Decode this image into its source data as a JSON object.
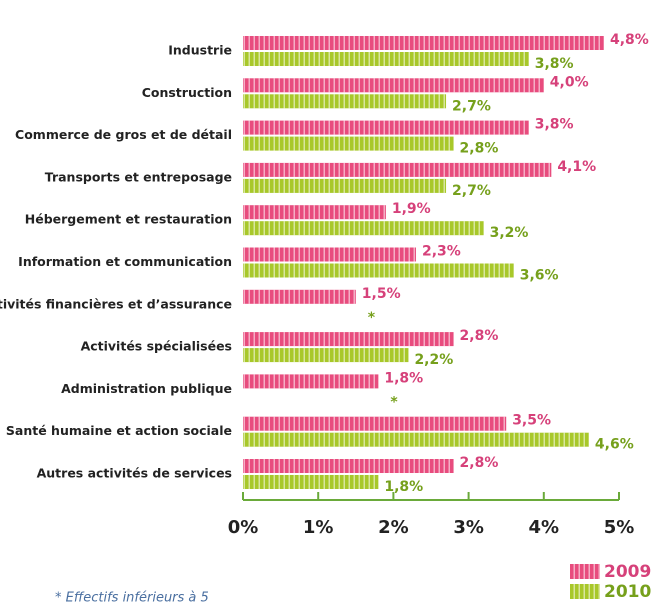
{
  "chart_data": {
    "type": "bar",
    "orientation": "horizontal",
    "categories": [
      "Industrie",
      "Construction",
      "Commerce de gros et de détail",
      "Transports et entreposage",
      "Hébergement et restauration",
      "Information et communication",
      "Activités financières et d’assurance",
      "Activités spécialisées",
      "Administration publique",
      "Santé humaine et action sociale",
      "Autres activités de services"
    ],
    "series": [
      {
        "name": "2009",
        "color": "#e84c7e",
        "label_color": "#d6417a",
        "values": [
          4.8,
          4.0,
          3.8,
          4.1,
          1.9,
          2.3,
          1.5,
          2.8,
          1.8,
          3.5,
          2.8
        ],
        "value_labels": [
          "4,8%",
          "4,0%",
          "3,8%",
          "4,1%",
          "1,9%",
          "2,3%",
          "1,5%",
          "2,8%",
          "1,8%",
          "3,5%",
          "2,8%"
        ]
      },
      {
        "name": "2010",
        "color": "#a8c82a",
        "label_color": "#76a01c",
        "values": [
          3.8,
          2.7,
          2.8,
          2.7,
          3.2,
          3.6,
          null,
          2.2,
          null,
          4.6,
          1.8
        ],
        "value_labels": [
          "3,8%",
          "2,7%",
          "2,8%",
          "2,7%",
          "3,2%",
          "3,6%",
          "*",
          "2,2%",
          "*",
          "4,6%",
          "1,8%"
        ]
      }
    ],
    "xlim": [
      0,
      5
    ],
    "xticks": [
      {
        "value": 0,
        "label": "0%"
      },
      {
        "value": 1,
        "label": "1%"
      },
      {
        "value": 2,
        "label": "2%"
      },
      {
        "value": 3,
        "label": "3%"
      },
      {
        "value": 4,
        "label": "4%"
      },
      {
        "value": 5,
        "label": "5%"
      }
    ],
    "legend": "bottom-right",
    "footnote": "* Effectifs inférieurs à 5"
  }
}
